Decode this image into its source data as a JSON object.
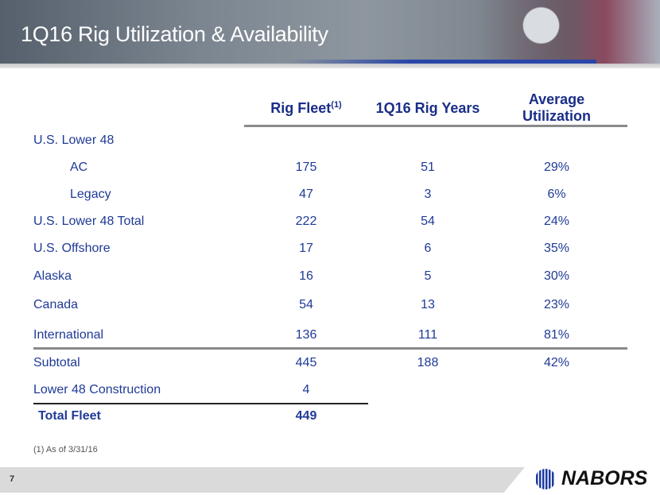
{
  "slide": {
    "title": "1Q16 Rig Utilization & Availability",
    "page_number": "7",
    "footnote": "(1) As of 3/31/16",
    "logo_text": "NABORS"
  },
  "table": {
    "headers": {
      "rig_fleet": "Rig Fleet",
      "rig_fleet_sup": "(1)",
      "rig_years": "1Q16 Rig Years",
      "utilization_line1": "Average",
      "utilization_line2": "Utilization"
    },
    "rows": [
      {
        "label": "U.S. Lower 48",
        "fleet": "",
        "years": "",
        "util": ""
      },
      {
        "label": "AC",
        "fleet": "175",
        "years": "51",
        "util": "29%"
      },
      {
        "label": "Legacy",
        "fleet": "47",
        "years": "3",
        "util": "6%"
      },
      {
        "label": "U.S. Lower 48 Total",
        "fleet": "222",
        "years": "54",
        "util": "24%"
      },
      {
        "label": "U.S. Offshore",
        "fleet": "17",
        "years": "6",
        "util": "35%"
      },
      {
        "label": "Alaska",
        "fleet": "16",
        "years": "5",
        "util": "30%"
      },
      {
        "label": "Canada",
        "fleet": "54",
        "years": "13",
        "util": "23%"
      },
      {
        "label": "International",
        "fleet": "136",
        "years": "111",
        "util": "81%"
      },
      {
        "label": "Subtotal",
        "fleet": "445",
        "years": "188",
        "util": "42%"
      },
      {
        "label": "Lower 48 Construction",
        "fleet": "4",
        "years": "",
        "util": ""
      },
      {
        "label": "Total Fleet",
        "fleet": "449",
        "years": "",
        "util": ""
      }
    ]
  },
  "colors": {
    "text": "#1f3a96",
    "header": "#1a2e88",
    "logo_blue": "#1d3aa0"
  }
}
